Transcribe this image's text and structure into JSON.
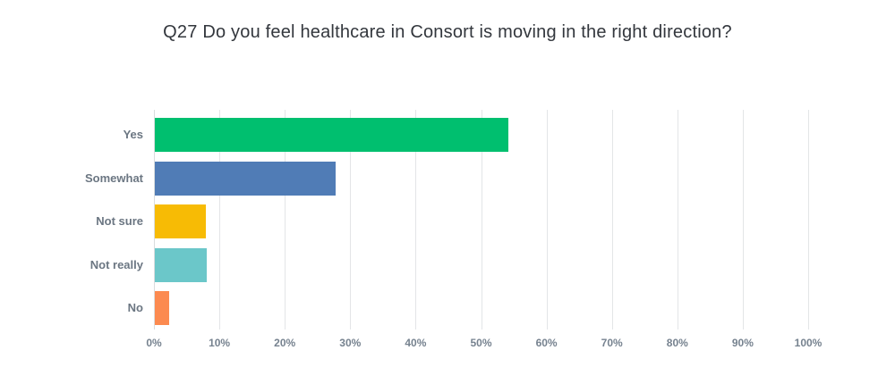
{
  "title": "Q27 Do you feel healthcare in Consort is moving in the right direction?",
  "chart_data": {
    "type": "bar",
    "orientation": "horizontal",
    "title": "Q27 Do you feel healthcare in Consort is moving in the right direction?",
    "categories": [
      "Yes",
      "Somewhat",
      "Not sure",
      "Not really",
      "No"
    ],
    "values": [
      54.0,
      27.6,
      7.8,
      7.9,
      2.2
    ],
    "bar_colors": [
      "#00BF6F",
      "#507CB6",
      "#F7BB05",
      "#6BC7C9",
      "#FC8A50"
    ],
    "xlabel": "",
    "ylabel": "",
    "xlim": [
      0,
      100
    ],
    "x_ticks": [
      "0%",
      "10%",
      "20%",
      "30%",
      "40%",
      "50%",
      "60%",
      "70%",
      "80%",
      "90%",
      "100%"
    ],
    "grid": true,
    "legend": false
  },
  "theme": {
    "background": "#ffffff",
    "title_color": "#33373d",
    "category_label_color": "#6b7682",
    "tick_label_color": "#76828f",
    "gridline_color": "#e3e5e7",
    "zero_line_color": "#d9dcde"
  }
}
